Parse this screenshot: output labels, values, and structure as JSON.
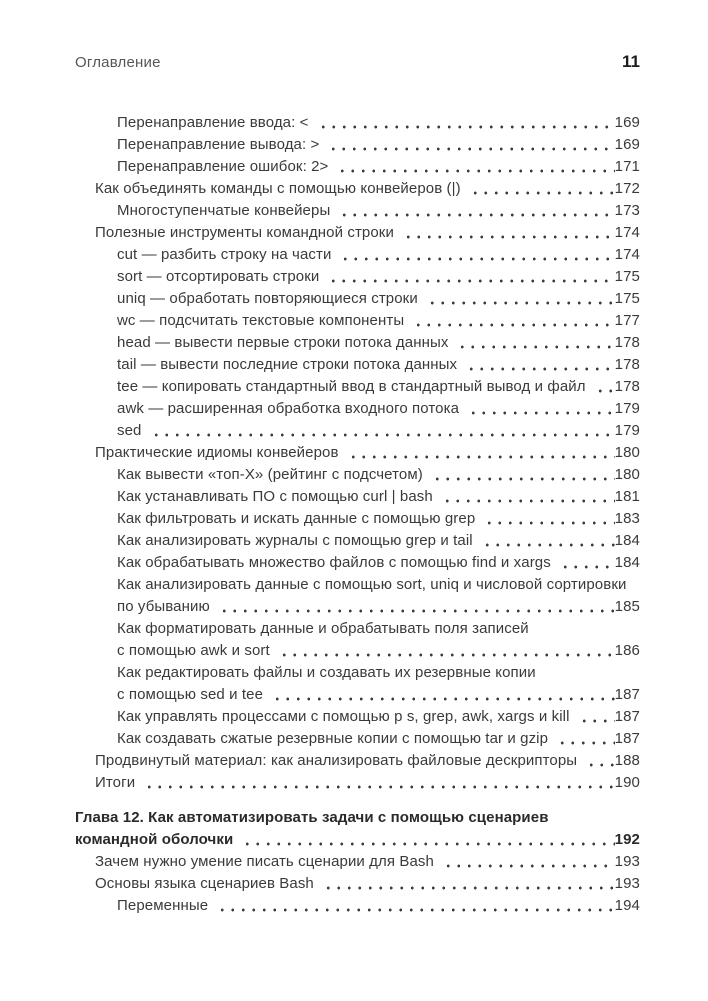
{
  "header": {
    "title": "Оглавление",
    "page_number": "11"
  },
  "toc": {
    "entries": [
      {
        "level": 2,
        "chapter": false,
        "lines": [
          "Перенаправление ввода: <"
        ],
        "page": "169"
      },
      {
        "level": 2,
        "chapter": false,
        "lines": [
          "Перенаправление вывода: >"
        ],
        "page": "169"
      },
      {
        "level": 2,
        "chapter": false,
        "lines": [
          "Перенаправление ошибок: 2>"
        ],
        "page": "171"
      },
      {
        "level": 1,
        "chapter": false,
        "lines": [
          "Как объединять команды с помощью конвейеров (|)"
        ],
        "page": "172"
      },
      {
        "level": 2,
        "chapter": false,
        "lines": [
          "Многоступенчатые конвейеры"
        ],
        "page": "173"
      },
      {
        "level": 1,
        "chapter": false,
        "lines": [
          "Полезные инструменты командной строки"
        ],
        "page": "174"
      },
      {
        "level": 2,
        "chapter": false,
        "lines": [
          "cut — разбить строку на части"
        ],
        "page": "174"
      },
      {
        "level": 2,
        "chapter": false,
        "lines": [
          "sort — отсортировать строки"
        ],
        "page": "175"
      },
      {
        "level": 2,
        "chapter": false,
        "lines": [
          "uniq — обработать повторяющиеся строки"
        ],
        "page": "175"
      },
      {
        "level": 2,
        "chapter": false,
        "lines": [
          "wc — подсчитать текстовые компоненты"
        ],
        "page": "177"
      },
      {
        "level": 2,
        "chapter": false,
        "lines": [
          "head — вывести первые строки потока данных"
        ],
        "page": "178"
      },
      {
        "level": 2,
        "chapter": false,
        "lines": [
          "tail — вывести последние строки потока данных"
        ],
        "page": "178"
      },
      {
        "level": 2,
        "chapter": false,
        "lines": [
          "tee — копировать стандартный ввод в стандартный вывод и файл"
        ],
        "page": "178"
      },
      {
        "level": 2,
        "chapter": false,
        "lines": [
          "awk — расширенная обработка входного потока"
        ],
        "page": "179"
      },
      {
        "level": 2,
        "chapter": false,
        "lines": [
          "sed"
        ],
        "page": "179"
      },
      {
        "level": 1,
        "chapter": false,
        "lines": [
          "Практические идиомы конвейеров"
        ],
        "page": "180"
      },
      {
        "level": 2,
        "chapter": false,
        "lines": [
          "Как вывести «топ-X» (рейтинг с подсчетом)"
        ],
        "page": "180"
      },
      {
        "level": 2,
        "chapter": false,
        "lines": [
          "Как устанавливать ПО с помощью curl | bash"
        ],
        "page": "181"
      },
      {
        "level": 2,
        "chapter": false,
        "lines": [
          "Как фильтровать и искать данные с помощью grep"
        ],
        "page": "183"
      },
      {
        "level": 2,
        "chapter": false,
        "lines": [
          "Как анализировать журналы с помощью grep и tail"
        ],
        "page": "184"
      },
      {
        "level": 2,
        "chapter": false,
        "lines": [
          "Как обрабатывать множество файлов с помощью find и xargs"
        ],
        "page": "184"
      },
      {
        "level": 2,
        "chapter": false,
        "lines": [
          "Как анализировать данные с помощью sort, uniq и числовой сортировки",
          "по убыванию"
        ],
        "page": "185"
      },
      {
        "level": 2,
        "chapter": false,
        "lines": [
          "Как форматировать данные и обрабатывать поля записей",
          "с помощью awk и sort"
        ],
        "page": "186"
      },
      {
        "level": 2,
        "chapter": false,
        "lines": [
          "Как редактировать файлы и создавать их резервные копии",
          "с помощью sed и tee"
        ],
        "page": "187"
      },
      {
        "level": 2,
        "chapter": false,
        "lines": [
          "Как управлять процессами с помощью p s, grep, awk, xargs и kill"
        ],
        "page": "187"
      },
      {
        "level": 2,
        "chapter": false,
        "lines": [
          "Как создавать сжатые резервные копии с помощью tar и gzip"
        ],
        "page": "187"
      },
      {
        "level": 1,
        "chapter": false,
        "lines": [
          "Продвинутый материал: как анализировать файловые дескрипторы"
        ],
        "page": "188"
      },
      {
        "level": 1,
        "chapter": false,
        "lines": [
          "Итоги"
        ],
        "page": "190"
      },
      {
        "level": 0,
        "chapter": true,
        "lines": [
          "Глава 12. Как автоматизировать задачи с помощью сценариев",
          "командной оболочки"
        ],
        "page": "192"
      },
      {
        "level": 1,
        "chapter": false,
        "lines": [
          "Зачем нужно умение писать сценарии для Bash"
        ],
        "page": "193"
      },
      {
        "level": 1,
        "chapter": false,
        "lines": [
          "Основы языка сценариев Bash"
        ],
        "page": "193"
      },
      {
        "level": 2,
        "chapter": false,
        "lines": [
          "Переменные"
        ],
        "page": "194"
      }
    ]
  }
}
